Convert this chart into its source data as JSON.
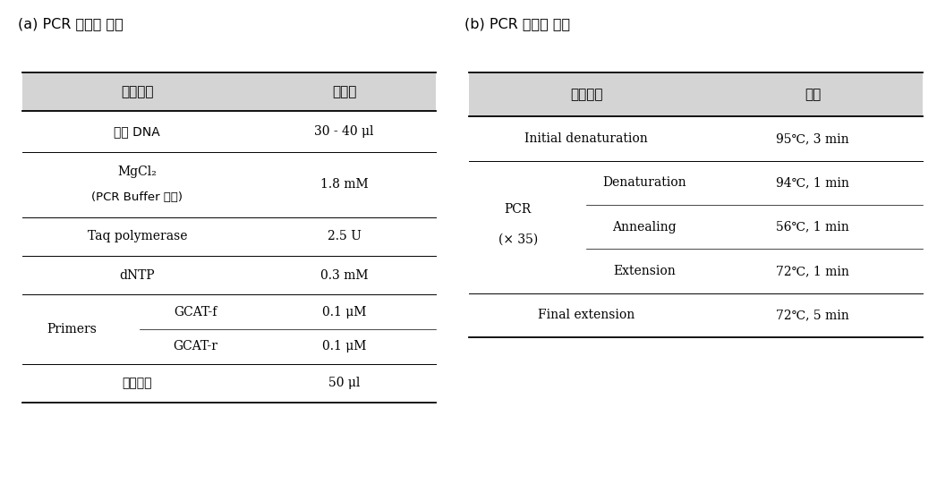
{
  "title_a": "(a) PCR 반응액 조성",
  "title_b": "(b) PCR 반응액 조건",
  "header_bg": "#d4d4d4",
  "bg_color": "#ffffff",
  "text_color": "#000000",
  "table_a_header": [
    "반응물질",
    "첸가량"
  ],
  "table_b_header": [
    "반응단계",
    "조건"
  ]
}
